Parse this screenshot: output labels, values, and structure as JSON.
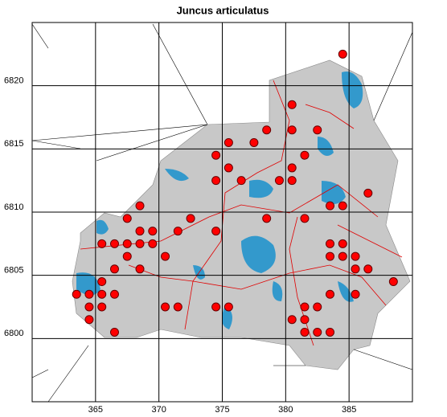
{
  "chart_data": {
    "type": "scatter",
    "title": "Juncus articulatus",
    "x": [
      384.5,
      380.5,
      378.5,
      380.5,
      382.5,
      375.5,
      377.5,
      374.5,
      381.5,
      375.5,
      380.5,
      374.5,
      376.5,
      379.5,
      380.5,
      386.5,
      368.5,
      383.5,
      384.5,
      367.5,
      372.5,
      378.5,
      381.5,
      368.5,
      369.5,
      371.5,
      374.5,
      365.5,
      366.5,
      367.5,
      368.5,
      369.5,
      383.5,
      384.5,
      367.5,
      370.5,
      383.5,
      384.5,
      385.5,
      366.5,
      368.5,
      385.5,
      386.5,
      365.5,
      388.5,
      363.5,
      364.5,
      365.5,
      366.5,
      383.5,
      385.5,
      364.5,
      365.5,
      370.5,
      371.5,
      374.5,
      375.5,
      381.5,
      382.5,
      364.5,
      380.5,
      381.5,
      366.5,
      381.5,
      382.5,
      383.5
    ],
    "values": [
      6822.5,
      6818.5,
      6816.5,
      6816.5,
      6816.5,
      6815.5,
      6815.5,
      6814.5,
      6814.5,
      6813.5,
      6813.5,
      6812.5,
      6812.5,
      6812.5,
      6812.5,
      6811.5,
      6810.5,
      6810.5,
      6810.5,
      6809.5,
      6809.5,
      6809.5,
      6809.5,
      6808.5,
      6808.5,
      6808.5,
      6808.5,
      6807.5,
      6807.5,
      6807.5,
      6807.5,
      6807.5,
      6807.5,
      6807.5,
      6806.5,
      6806.5,
      6806.5,
      6806.5,
      6806.5,
      6805.5,
      6805.5,
      6805.5,
      6805.5,
      6804.5,
      6804.5,
      6803.5,
      6803.5,
      6803.5,
      6803.5,
      6803.5,
      6803.5,
      6802.5,
      6802.5,
      6802.5,
      6802.5,
      6802.5,
      6802.5,
      6802.5,
      6802.5,
      6801.5,
      6801.5,
      6801.5,
      6800.5,
      6800.5,
      6800.5,
      6800.5
    ],
    "color": "#ff0000",
    "xlim": [
      360,
      390
    ],
    "ylim": [
      6795,
      6825
    ],
    "xticks": [
      365,
      370,
      375,
      380,
      385
    ],
    "yticks": [
      6800,
      6805,
      6810,
      6815,
      6820
    ],
    "grid": true
  }
}
